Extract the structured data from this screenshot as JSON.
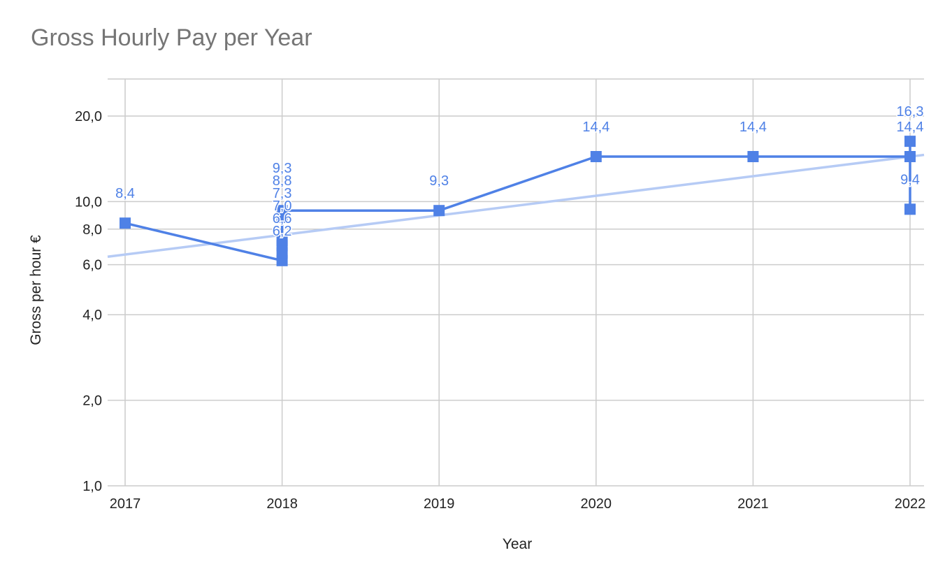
{
  "chart_data": {
    "type": "line",
    "title": "Gross Hourly Pay per Year",
    "xlabel": "Year",
    "ylabel": "Gross per hour €",
    "yscale": "log",
    "ylim": [
      1.0,
      27.0
    ],
    "y_ticks": [
      {
        "value": 1,
        "label": "1,0"
      },
      {
        "value": 2,
        "label": "2,0"
      },
      {
        "value": 4,
        "label": "4,0"
      },
      {
        "value": 6,
        "label": "6,0"
      },
      {
        "value": 8,
        "label": "8,0"
      },
      {
        "value": 10,
        "label": "10,0"
      },
      {
        "value": 20,
        "label": "20,0"
      }
    ],
    "x_ticks": [
      "2017",
      "2018",
      "2019",
      "2020",
      "2021",
      "2022"
    ],
    "grid": true,
    "legend": "none",
    "colors": {
      "series": "#4f81e6",
      "trend": "#b6cbf5"
    },
    "series": [
      {
        "points": [
          {
            "x": 2017,
            "y": 8.4,
            "label": "8,4"
          },
          {
            "x": 2018,
            "y": 6.2,
            "label": "6,2"
          },
          {
            "x": 2018,
            "y": 6.6,
            "label": "6,6"
          },
          {
            "x": 2018,
            "y": 7.0,
            "label": "7,0"
          },
          {
            "x": 2018,
            "y": 7.3,
            "label": "7,3"
          },
          {
            "x": 2018,
            "y": 8.8,
            "label": "8,8"
          },
          {
            "x": 2018,
            "y": 9.3,
            "label": "9,3"
          },
          {
            "x": 2019,
            "y": 9.3,
            "label": "9,3"
          },
          {
            "x": 2020,
            "y": 14.4,
            "label": "14,4"
          },
          {
            "x": 2021,
            "y": 14.4,
            "label": "14,4"
          },
          {
            "x": 2022,
            "y": 14.4,
            "label": "14,4"
          },
          {
            "x": 2022,
            "y": 16.3,
            "label": "16,3"
          },
          {
            "x": 2022,
            "y": 9.4,
            "label": "9,4"
          }
        ]
      }
    ],
    "trendline": {
      "type": "exponential",
      "start": {
        "x": 2017,
        "y": 6.4
      },
      "end": {
        "x": 2022,
        "y": 14.6
      }
    }
  }
}
